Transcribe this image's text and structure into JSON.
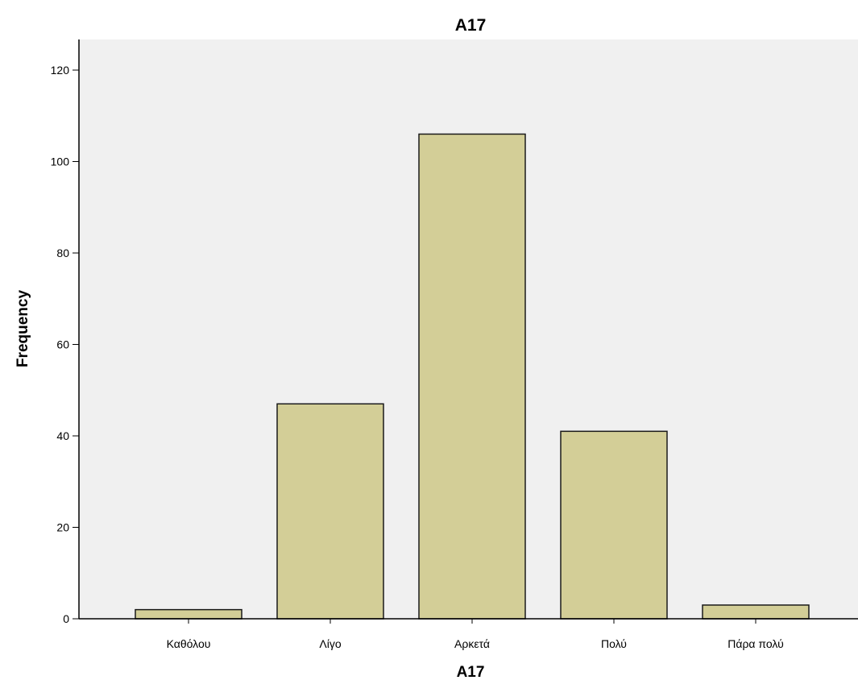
{
  "chart_data": {
    "type": "bar",
    "title": "A17",
    "xlabel": "A17",
    "ylabel": "Frequency",
    "categories": [
      "Καθόλου",
      "Λίγο",
      "Αρκετά",
      "Πολύ",
      "Πάρα πολύ"
    ],
    "values": [
      2,
      47,
      106,
      41,
      3
    ],
    "ylim": [
      0,
      120
    ],
    "yticks": [
      0,
      20,
      40,
      60,
      80,
      100,
      120
    ],
    "grid": false,
    "colors": {
      "bar_fill": "#d3ce97",
      "bar_stroke": "#1a1a1a",
      "plot_background": "#f0f0f0",
      "page_background": "#ffffff"
    }
  }
}
